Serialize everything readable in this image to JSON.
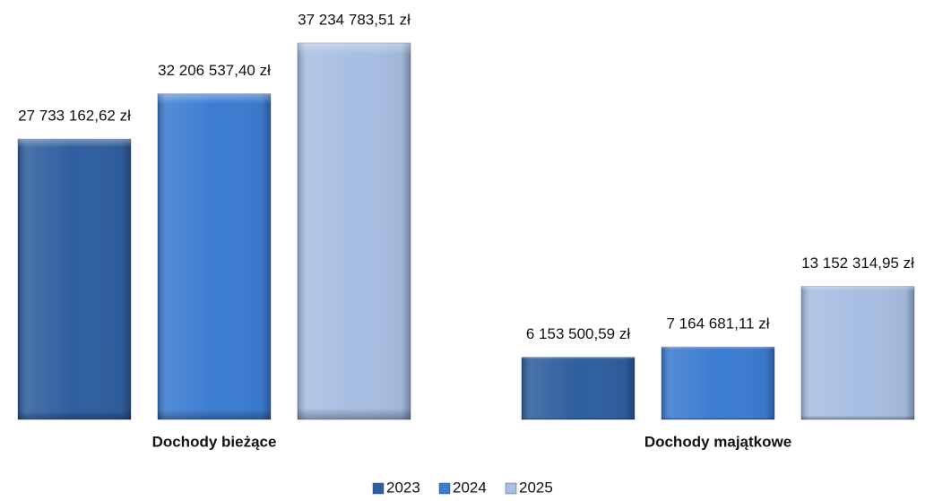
{
  "chart_data": {
    "type": "bar",
    "categories": [
      "Dochody bieżące",
      "Dochody majątkowe"
    ],
    "series": [
      {
        "name": "2023",
        "color": "#2f5f9f",
        "values": [
          27733162.62,
          6153500.59
        ],
        "value_labels": [
          "27 733 162,62 zł",
          "6 153 500,59 zł"
        ]
      },
      {
        "name": "2024",
        "color": "#3c7dd2",
        "values": [
          32206537.4,
          7164681.11
        ],
        "value_labels": [
          "32 206 537,40 zł",
          "7 164 681,11 zł"
        ]
      },
      {
        "name": "2025",
        "color": "#a8bee2",
        "values": [
          37234783.51,
          13152314.95
        ],
        "value_labels": [
          "37 234 783,51 zł",
          "13 152 314,95 zł"
        ]
      }
    ],
    "legend": "bottom"
  }
}
